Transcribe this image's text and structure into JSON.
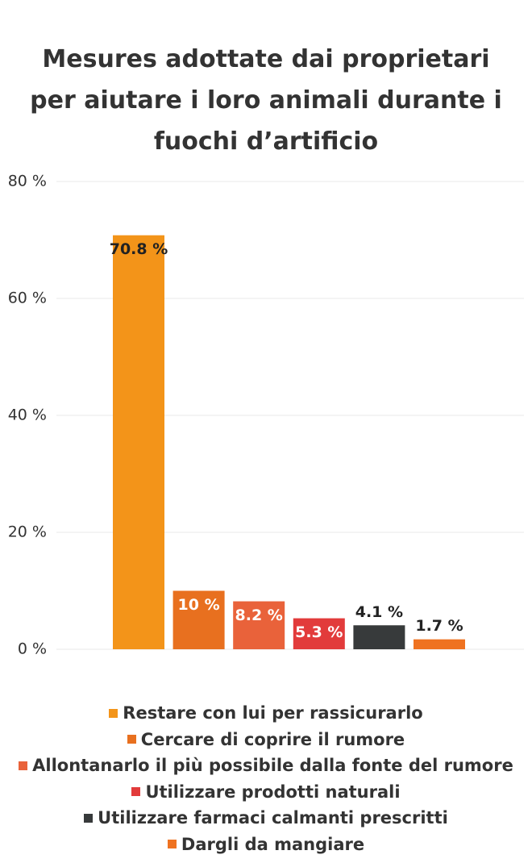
{
  "chart_data": {
    "type": "bar",
    "title": "Mesures adottate dai proprietari per aiutare i loro animali durante i fuochi d’artificio",
    "series": [
      {
        "name": "Restare con lui per rassicurarlo",
        "color": "#f39419",
        "values": [
          70.8
        ],
        "value_labels": [
          "70.8 %"
        ]
      },
      {
        "name": "Cercare di coprire il rumore",
        "color": "#e8701f",
        "values": [
          10
        ],
        "value_labels": [
          "10 %"
        ]
      },
      {
        "name": "Allontanarlo il più possibile dalla fonte del rumore",
        "color": "#e9623a",
        "values": [
          8.2
        ],
        "value_labels": [
          "8.2 %"
        ]
      },
      {
        "name": "Utilizzare prodotti naturali",
        "color": "#e23b3b",
        "values": [
          5.3
        ],
        "value_labels": [
          "5.3 %"
        ]
      },
      {
        "name": "Utilizzare farmaci calmanti prescritti",
        "color": "#373a3b",
        "values": [
          4.1
        ],
        "value_labels": [
          "4.1 %"
        ]
      },
      {
        "name": "Dargli da mangiare",
        "color": "#ef7220",
        "values": [
          1.7
        ],
        "value_labels": [
          "1.7 %"
        ]
      }
    ],
    "ylim": [
      0,
      80
    ],
    "yticks": [
      {
        "value": 0,
        "label": "0 %"
      },
      {
        "value": 20,
        "label": "20 %"
      },
      {
        "value": 40,
        "label": "40 %"
      },
      {
        "value": 60,
        "label": "60 %"
      },
      {
        "value": 80,
        "label": "80 %"
      }
    ],
    "grid": true
  }
}
